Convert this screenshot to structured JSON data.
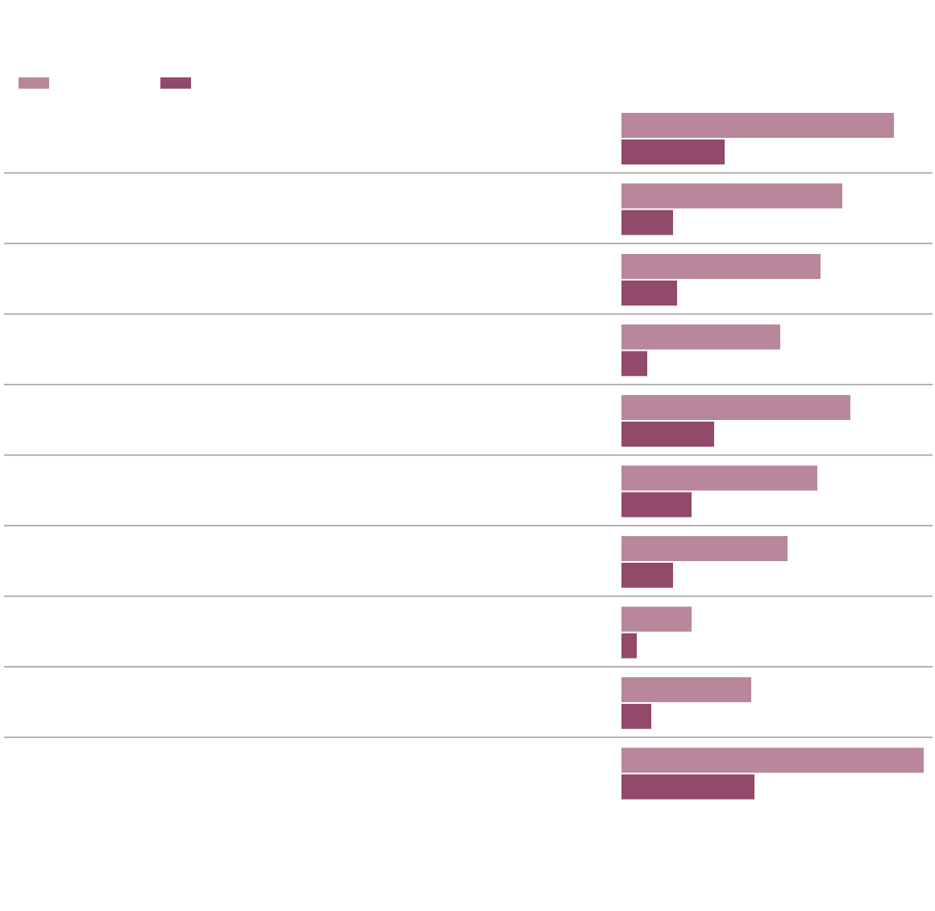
{
  "chart_data": {
    "type": "bar",
    "orientation": "horizontal",
    "categories": [
      null,
      null,
      null,
      null,
      null,
      null,
      null,
      null,
      null,
      null
    ],
    "series": [
      {
        "color": "#b8879b",
        "values": [
          338,
          274,
          247,
          197,
          284,
          243,
          206,
          87,
          161,
          375
        ]
      },
      {
        "color": "#914a6a",
        "values": [
          128,
          64,
          69,
          32,
          115,
          87,
          64,
          19,
          37,
          165
        ]
      }
    ]
  }
}
